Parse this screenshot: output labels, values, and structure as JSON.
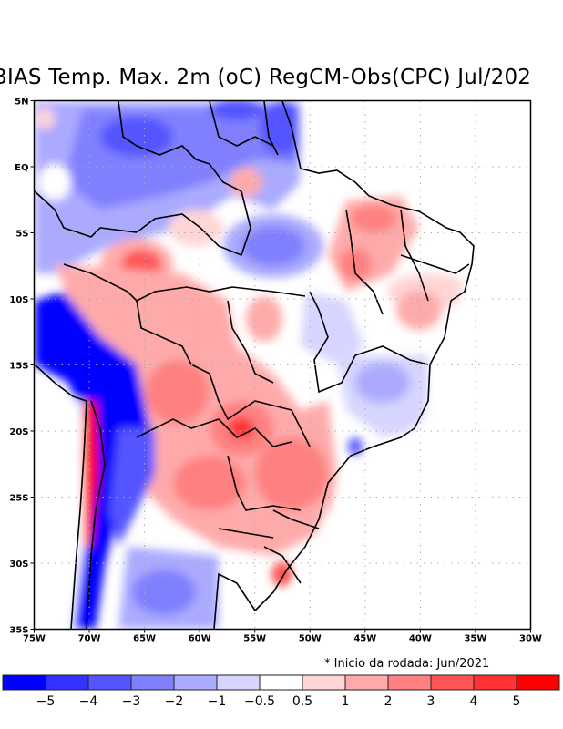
{
  "title": "BIAS Temp. Max. 2m (oC) RegCM-Obs(CPC) Jul/202",
  "note": "* Inicio da rodada: Jun/2021",
  "map": {
    "lon_range": [
      -75,
      -30
    ],
    "lat_range": [
      -35,
      5
    ],
    "x_ticks": [
      "75W",
      "70W",
      "65W",
      "60W",
      "55W",
      "50W",
      "45W",
      "40W",
      "35W",
      "30W"
    ],
    "y_ticks": [
      "5N",
      "EQ",
      "5S",
      "10S",
      "15S",
      "20S",
      "25S",
      "30S",
      "35S"
    ]
  },
  "colorbar": {
    "colors": [
      "#0000ff",
      "#3333ff",
      "#5555ff",
      "#8080ff",
      "#aaaaff",
      "#d5d5ff",
      "#ffffff",
      "#ffd5d5",
      "#ffaaaa",
      "#ff8080",
      "#ff5555",
      "#ff3333",
      "#ff0000"
    ],
    "labels": [
      "-5",
      "-4",
      "-3",
      "-2",
      "-1",
      "-0.5",
      "0.5",
      "1",
      "2",
      "3",
      "4",
      "5"
    ]
  }
}
